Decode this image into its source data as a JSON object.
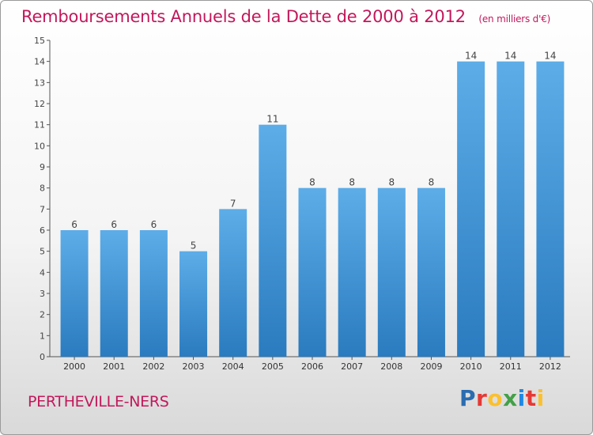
{
  "title": "Remboursements Annuels de la Dette de 2000 à 2012",
  "subtitle": "(en milliers d'€)",
  "commune": "PERTHEVILLE-NERS",
  "brand": {
    "text": "Proxiti",
    "letters": [
      {
        "ch": "P",
        "color": "#2b6cb0"
      },
      {
        "ch": "r",
        "color": "#e53935"
      },
      {
        "ch": "o",
        "color": "#fbc02d"
      },
      {
        "ch": "x",
        "color": "#43a047"
      },
      {
        "ch": "i",
        "color": "#1e88e5"
      },
      {
        "ch": "t",
        "color": "#e53935"
      },
      {
        "ch": "i",
        "color": "#fbc02d"
      }
    ]
  },
  "colors": {
    "bar_top": "#5dade8",
    "bar_bottom": "#2a7bbf",
    "title": "#c2185b",
    "axis": "#555555"
  },
  "chart_data": {
    "type": "bar",
    "categories": [
      "2000",
      "2001",
      "2002",
      "2003",
      "2004",
      "2005",
      "2006",
      "2007",
      "2008",
      "2009",
      "2010",
      "2011",
      "2012"
    ],
    "values": [
      6,
      6,
      6,
      5,
      7,
      11,
      8,
      8,
      8,
      8,
      14,
      14,
      14
    ],
    "ylim": [
      0,
      15
    ],
    "yticks": [
      0,
      1,
      2,
      3,
      4,
      5,
      6,
      7,
      8,
      9,
      10,
      11,
      12,
      13,
      14,
      15
    ],
    "title": "Remboursements Annuels de la Dette de 2000 à 2012",
    "subtitle": "(en milliers d'€)",
    "xlabel": "",
    "ylabel": "",
    "grid": false,
    "data_labels": true
  }
}
